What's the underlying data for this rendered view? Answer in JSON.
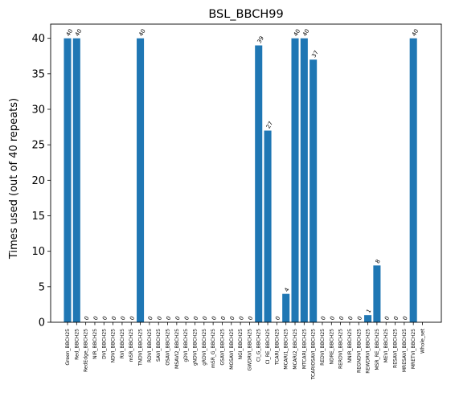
{
  "chart_data": {
    "type": "bar",
    "title": "BSL_BBCH99",
    "xlabel": "",
    "ylabel": "Times used (out of 40 repeats)",
    "ylim": [
      0,
      42
    ],
    "yticks": [
      0,
      5,
      10,
      15,
      20,
      25,
      30,
      35,
      40
    ],
    "grid": false,
    "bar_color": "#1f77b4",
    "categories": [
      "Green_BBCH25",
      "Red_BBCH25",
      "RedEdge_BBCH25",
      "NIR_BBCH25",
      "DVI_BBCH25",
      "NDVI_BBCH25",
      "RVI_BBCH25",
      "mSR_BBCH25",
      "TNDVI_BBCH25",
      "RDVI_BBCH25",
      "SAVI_BBCH25",
      "OSAVI_BBCH25",
      "MSAVI2_BBCH25",
      "gDVI_BBCH25",
      "gNDVI_BBCH25",
      "gRDVI_BBCH25",
      "mSR_G_BBCH25",
      "GSAVI_BBCH25",
      "MGSAVI_BBCH25",
      "NGI_BBCH25",
      "GWDRVI_BBCH25",
      "CI_G_BBCH25",
      "CI_RE_BBCH25",
      "TCARI_BBCH25",
      "MCARI1_BBCH25",
      "MCARI2_BBCH25",
      "MTCARI_BBCH25",
      "TCARIOSAVI_BBCH25",
      "REDVI_BBCH25",
      "NDRE_BBCH25",
      "RERDVI_BBCH25",
      "NNIR_BBCH25",
      "REGNDVI_BBCH25",
      "REWDRVI_BBCH25",
      "MSR_RE_BBCH25",
      "MEVI_BBCH25",
      "RESAVI_BBCH25",
      "MRESAVI_BBCH25",
      "MRETVI_BBCH25",
      "Whole_set"
    ],
    "values": [
      40,
      40,
      0,
      0,
      0,
      0,
      0,
      0,
      40,
      0,
      0,
      0,
      0,
      0,
      0,
      0,
      0,
      0,
      0,
      0,
      0,
      39,
      27,
      0,
      4,
      40,
      40,
      37,
      0,
      0,
      0,
      0,
      0,
      1,
      8,
      0,
      0,
      0,
      40,
      null
    ],
    "data_labels": [
      "40",
      "40",
      "0",
      "0",
      "0",
      "0",
      "0",
      "0",
      "40",
      "0",
      "0",
      "0",
      "0",
      "0",
      "0",
      "0",
      "0",
      "0",
      "0",
      "0",
      "0",
      "39",
      "27",
      "0",
      "4",
      "40",
      "40",
      "37",
      "0",
      "0",
      "0",
      "0",
      "0",
      "1",
      "8",
      "0",
      "0",
      "0",
      "40",
      ""
    ]
  }
}
